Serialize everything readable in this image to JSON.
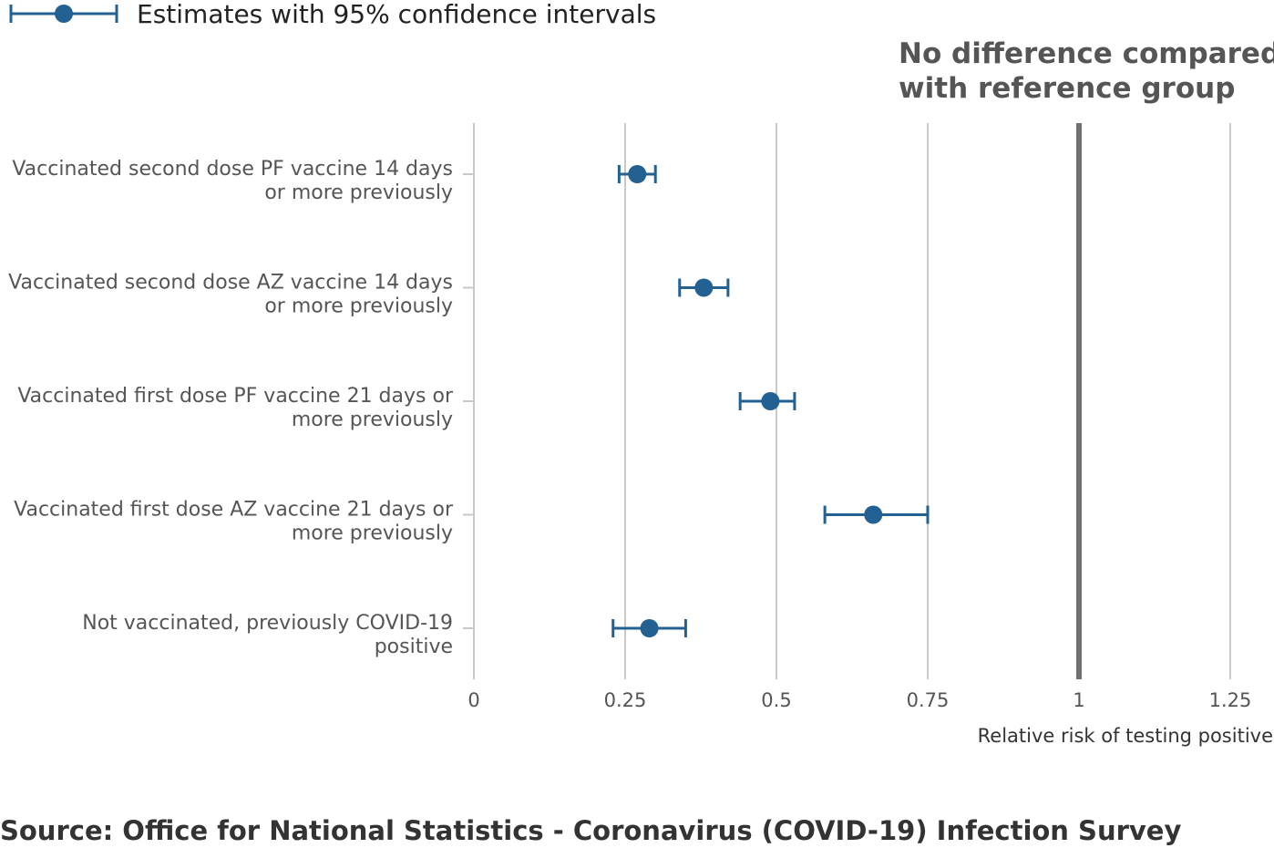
{
  "legend": {
    "label": "Estimates with 95% confidence intervals"
  },
  "reference": {
    "line1": "No difference compared",
    "line2": "with reference group"
  },
  "source": "Source: Office for National Statistics - Coronavirus (COVID-19) Infection Survey",
  "colors": {
    "marker": "#236192",
    "gridline": "#c8c8c8",
    "reference_line": "#707070",
    "text": "#555555"
  },
  "chart_data": {
    "type": "scatter",
    "orientation": "horizontal",
    "xlabel": "Relative risk of testing positive",
    "xlim": [
      0,
      1.25
    ],
    "xticks": [
      {
        "value": 0,
        "label": "0"
      },
      {
        "value": 0.25,
        "label": "0.25"
      },
      {
        "value": 0.5,
        "label": "0.5"
      },
      {
        "value": 0.75,
        "label": "0.75"
      },
      {
        "value": 1,
        "label": "1"
      },
      {
        "value": 1.25,
        "label": "1.25"
      }
    ],
    "reference_value": 1,
    "grid": true,
    "legend_position": "top-left",
    "categories": [
      {
        "lines": [
          "Vaccinated second dose PF vaccine 14 days",
          "or more previously"
        ],
        "estimate": 0.27,
        "lower": 0.24,
        "upper": 0.3
      },
      {
        "lines": [
          "Vaccinated second dose AZ vaccine 14 days",
          "or more previously"
        ],
        "estimate": 0.38,
        "lower": 0.34,
        "upper": 0.42
      },
      {
        "lines": [
          "Vaccinated first dose PF vaccine 21 days or",
          "more previously"
        ],
        "estimate": 0.49,
        "lower": 0.44,
        "upper": 0.53
      },
      {
        "lines": [
          "Vaccinated first dose AZ vaccine 21 days or",
          "more previously"
        ],
        "estimate": 0.66,
        "lower": 0.58,
        "upper": 0.75
      },
      {
        "lines": [
          "Not vaccinated, previously COVID-19",
          "positive"
        ],
        "estimate": 0.29,
        "lower": 0.23,
        "upper": 0.35
      }
    ]
  }
}
